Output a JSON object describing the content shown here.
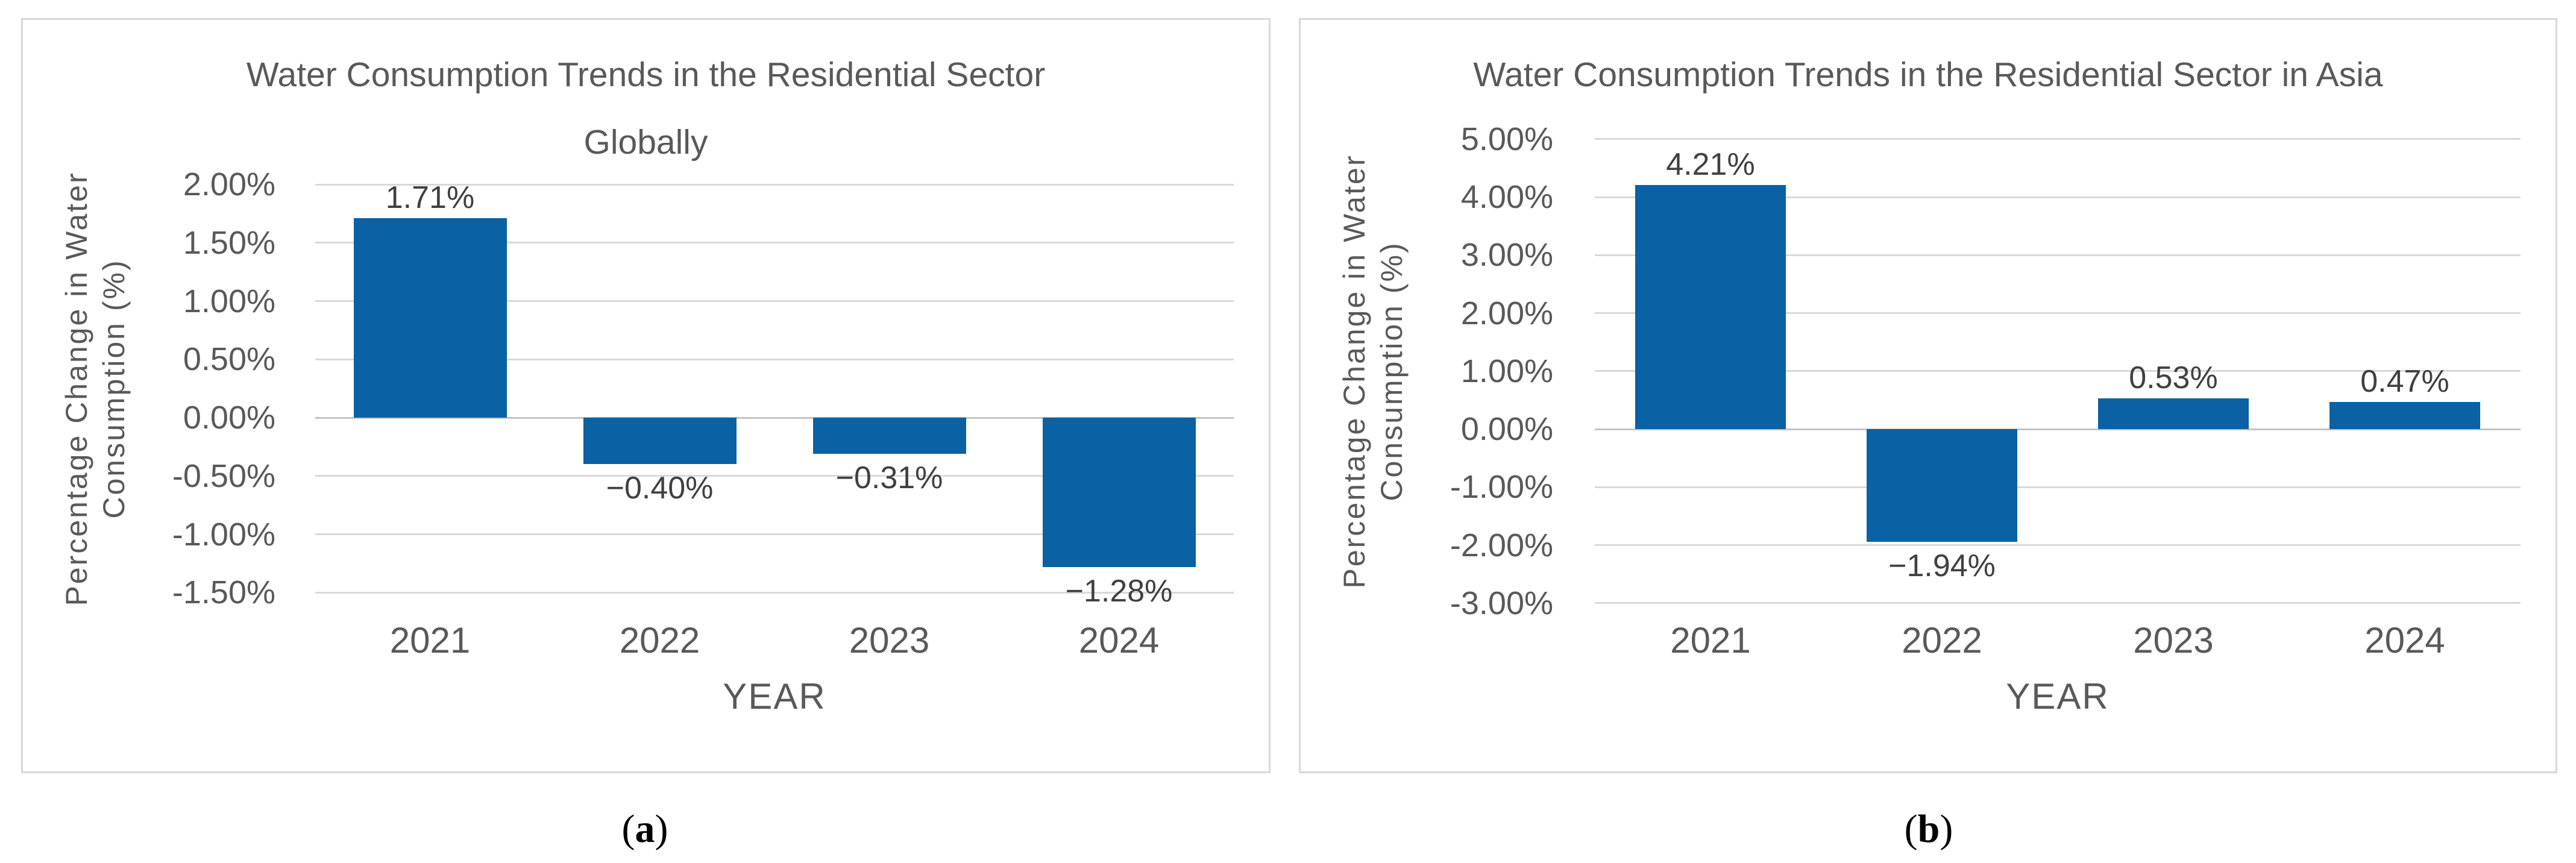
{
  "colors": {
    "bar": "#0A61A4",
    "gridline": "#D9D9D9",
    "zero_line": "#C4C4C4",
    "axis_text": "#595959",
    "data_label_text": "#404040",
    "panel_border": "#D8D8D8",
    "background": "#FFFFFF"
  },
  "chart_data": [
    {
      "type": "bar",
      "title": "Water Consumption Trends in the Residential Sector Globally",
      "title_lines": [
        "Water Consumption Trends in the Residential Sector",
        "Globally"
      ],
      "xlabel": "YEAR",
      "ylabel": "Percentage Change in Water Consumption (%)",
      "ylabel_lines": [
        "Percentage Change in Water",
        "Consumption (%)"
      ],
      "categories": [
        "2021",
        "2022",
        "2023",
        "2024"
      ],
      "values": [
        1.71,
        -0.4,
        -0.31,
        -1.28
      ],
      "value_labels": [
        "1.71%",
        "−0.40%",
        "−0.31%",
        "−1.28%"
      ],
      "ylim": [
        -1.5,
        2.0
      ],
      "ytick_step": 0.5,
      "yticks": [
        "2.00%",
        "1.50%",
        "1.00%",
        "0.50%",
        "0.00%",
        "-0.50%",
        "-1.00%",
        "-1.50%"
      ],
      "grid": true,
      "legend": "none",
      "caption_open": "(",
      "caption_letter": "a",
      "caption_close": ")"
    },
    {
      "type": "bar",
      "title": "Water Consumption Trends in the Residential Sector in Asia",
      "title_lines": [
        "Water Consumption Trends in the Residential Sector in Asia"
      ],
      "xlabel": "YEAR",
      "ylabel": "Percentage Change in Water Consumption (%)",
      "ylabel_lines": [
        "Percentage Change in Water",
        "Consumption (%)"
      ],
      "categories": [
        "2021",
        "2022",
        "2023",
        "2024"
      ],
      "values": [
        4.21,
        -1.94,
        0.53,
        0.47
      ],
      "value_labels": [
        "4.21%",
        "−1.94%",
        "0.53%",
        "0.47%"
      ],
      "ylim": [
        -3.0,
        5.0
      ],
      "ytick_step": 1.0,
      "yticks": [
        "5.00%",
        "4.00%",
        "3.00%",
        "2.00%",
        "1.00%",
        "0.00%",
        "-1.00%",
        "-2.00%",
        "-3.00%"
      ],
      "grid": true,
      "legend": "none",
      "caption_open": "(",
      "caption_letter": "b",
      "caption_close": ")"
    }
  ]
}
